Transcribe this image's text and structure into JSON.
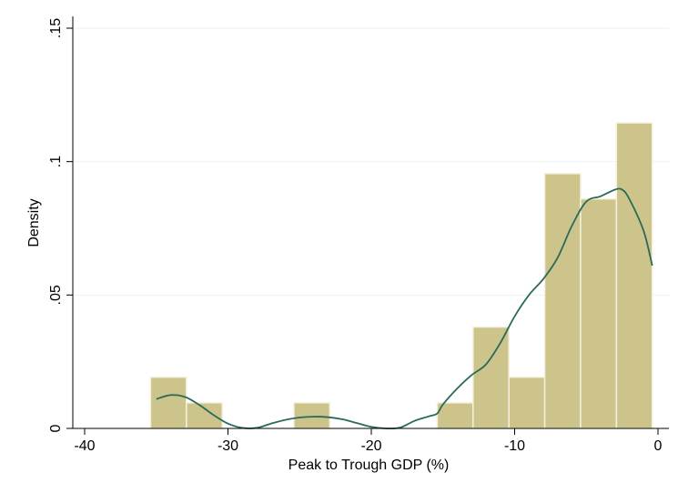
{
  "chart_data": {
    "type": "bar",
    "title": "",
    "xlabel": "Peak to Trough GDP (%)",
    "ylabel": "Density",
    "xlim": [
      -41,
      0.5
    ],
    "ylim": [
      0,
      0.15
    ],
    "x_ticks": [
      -40,
      -30,
      -20,
      -10,
      0
    ],
    "x_tick_labels": [
      "-40",
      "-30",
      "-20",
      "-10",
      "0"
    ],
    "y_ticks": [
      0,
      0.05,
      0.1,
      0.15
    ],
    "y_tick_labels": [
      "0",
      ".05",
      ".1",
      ".15"
    ],
    "grid": "horizontal",
    "bins": [
      {
        "x0": -35.4,
        "x1": -32.9,
        "value": 0.0192
      },
      {
        "x0": -32.9,
        "x1": -30.4,
        "value": 0.0096
      },
      {
        "x0": -25.4,
        "x1": -22.9,
        "value": 0.0096
      },
      {
        "x0": -15.4,
        "x1": -12.9,
        "value": 0.0096
      },
      {
        "x0": -12.9,
        "x1": -10.4,
        "value": 0.038
      },
      {
        "x0": -10.4,
        "x1": -7.9,
        "value": 0.0192
      },
      {
        "x0": -7.9,
        "x1": -5.4,
        "value": 0.0955
      },
      {
        "x0": -5.4,
        "x1": -2.9,
        "value": 0.086
      },
      {
        "x0": -2.9,
        "x1": -0.4,
        "value": 0.1145
      }
    ],
    "density_curve": {
      "x": [
        -35.0,
        -34.0,
        -33.0,
        -32.0,
        -31.0,
        -30.0,
        -29.0,
        -28.0,
        -27.0,
        -26.0,
        -25.0,
        -24.0,
        -23.0,
        -22.0,
        -21.0,
        -20.0,
        -19.0,
        -18.0,
        -17.0,
        -16.0,
        -15.4,
        -15.0,
        -14.0,
        -13.0,
        -12.0,
        -11.0,
        -10.0,
        -9.0,
        -8.0,
        -7.0,
        -6.0,
        -5.0,
        -4.0,
        -3.0,
        -2.5,
        -2.0,
        -1.0,
        -0.4
      ],
      "y": [
        0.011,
        0.0125,
        0.0118,
        0.0088,
        0.005,
        0.0018,
        0.0002,
        0.0002,
        0.0018,
        0.0032,
        0.0041,
        0.0044,
        0.0042,
        0.0034,
        0.002,
        0.0006,
        0.0,
        0.0003,
        0.0028,
        0.0045,
        0.0056,
        0.009,
        0.015,
        0.02,
        0.024,
        0.032,
        0.042,
        0.05,
        0.056,
        0.064,
        0.076,
        0.085,
        0.087,
        0.0895,
        0.0895,
        0.086,
        0.074,
        0.061
      ],
      "color": "#2a6a5a"
    },
    "bar_fill": "#cdc48c",
    "bar_stroke": "#f4f0dc",
    "grid_color": "#eaf2f3"
  }
}
